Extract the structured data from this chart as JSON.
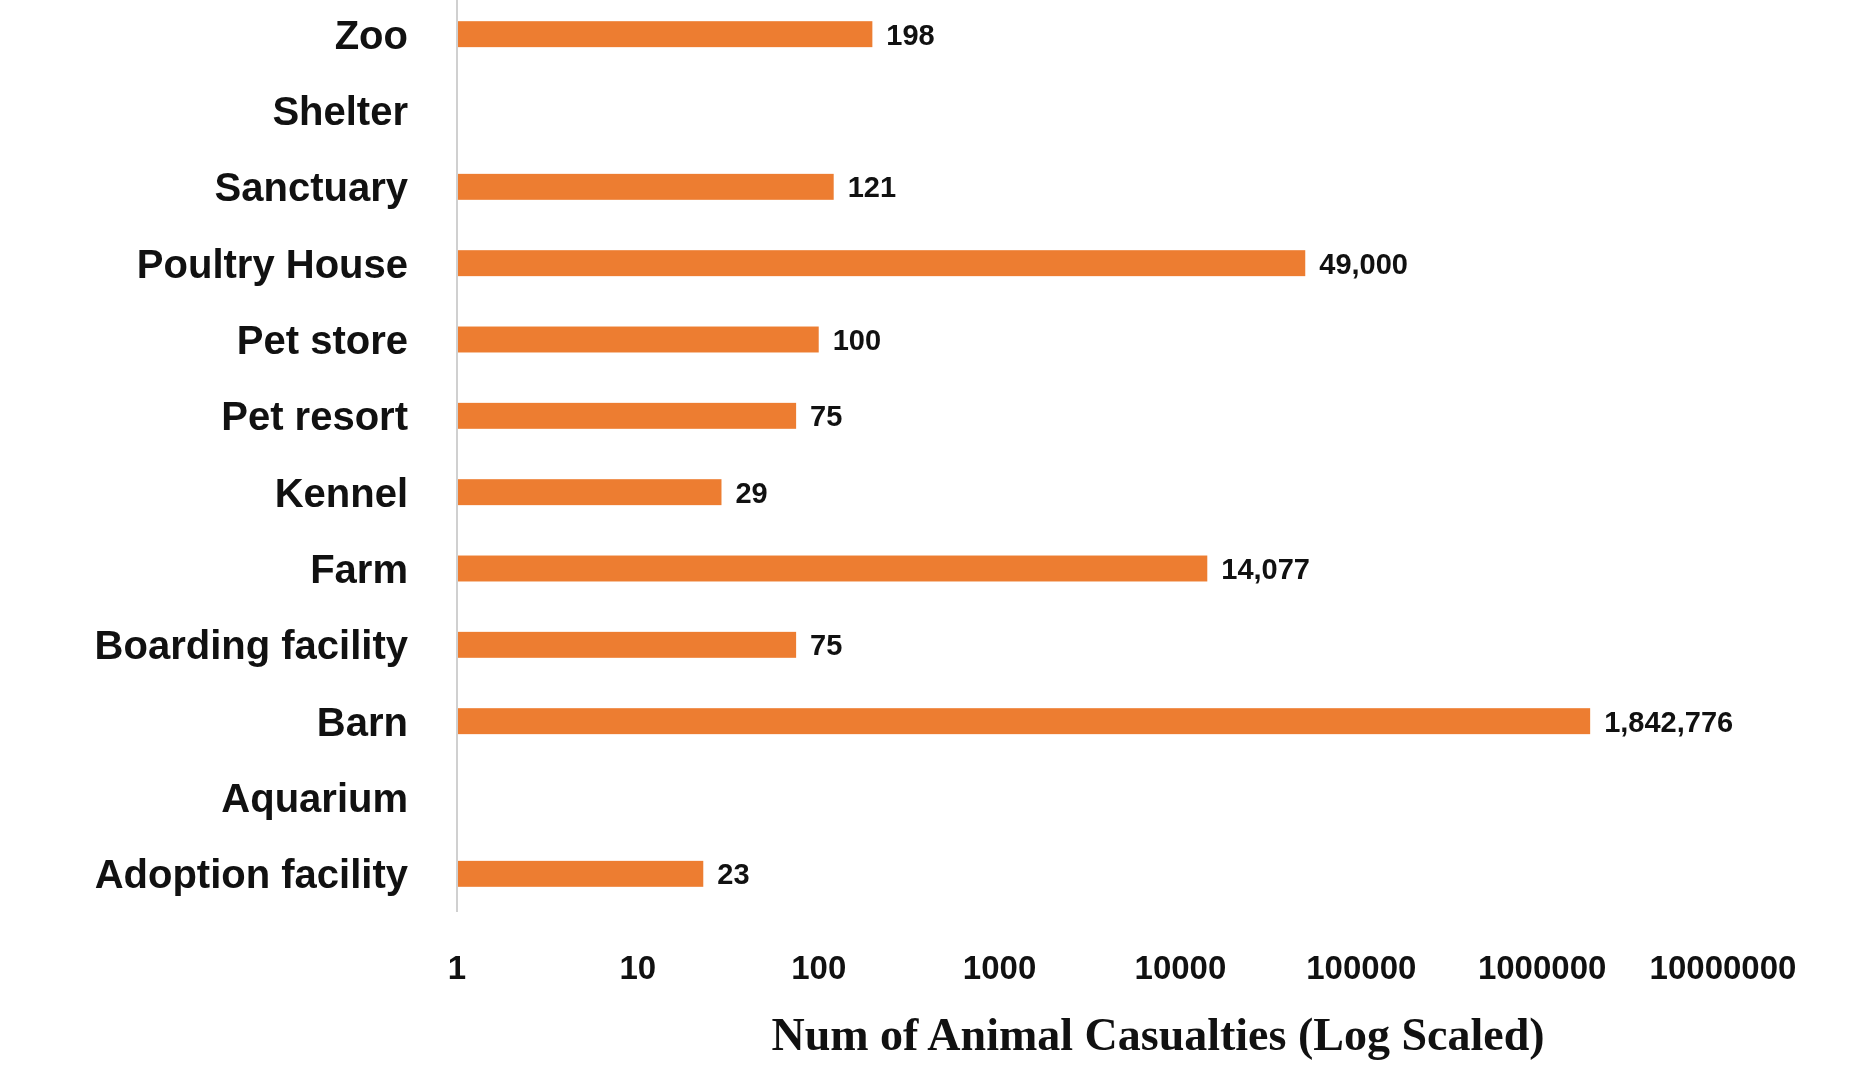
{
  "chart_data": {
    "type": "bar",
    "orientation": "horizontal",
    "xlabel": "Num of Animal Casualties (Log Scaled)",
    "categories": [
      "Zoo",
      "Shelter",
      "Sanctuary",
      "Poultry House",
      "Pet store",
      "Pet resort",
      "Kennel",
      "Farm",
      "Boarding facility",
      "Barn",
      "Aquarium",
      "Adoption facility"
    ],
    "values": [
      198,
      null,
      121,
      49000,
      100,
      75,
      29,
      14077,
      75,
      1842776,
      null,
      23
    ],
    "value_labels": [
      "198",
      null,
      "121",
      "49,000",
      "100",
      "75",
      "29",
      "14,077",
      "75",
      "1,842,776",
      null,
      "23"
    ],
    "color": "#ed7d31",
    "log": "x",
    "xlim": [
      1,
      10000000
    ],
    "xticks": [
      1,
      10,
      100,
      1000,
      10000,
      100000,
      1000000,
      10000000
    ],
    "grid": false
  }
}
